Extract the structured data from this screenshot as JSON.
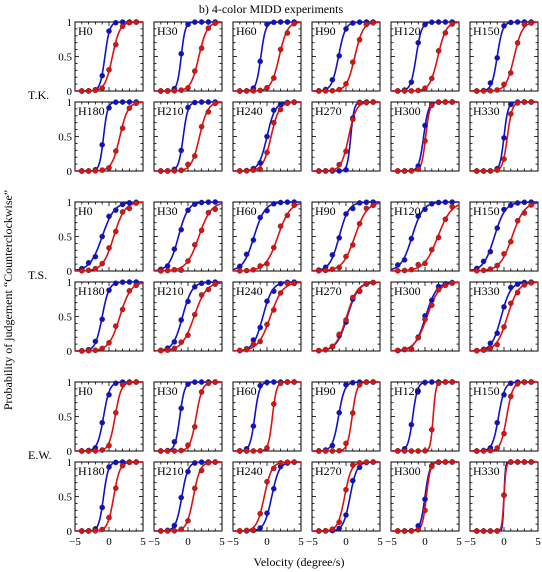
{
  "chart_data": {
    "type": "scatter",
    "title": "b) 4-color MIDD experiments",
    "xlabel": "Velocity (degree/s)",
    "ylabel": "Probability of judgement “Counterclockwise”",
    "xlim": [
      -5,
      5
    ],
    "ylim": [
      0,
      1
    ],
    "xticks": [
      "−5",
      "0",
      "5"
    ],
    "yticks": [
      "0",
      "0.5",
      "1"
    ],
    "colors": {
      "blue": "#1010cc",
      "red": "#dd1111"
    },
    "subjects": [
      {
        "label": "T.K.",
        "panels": [
          {
            "label": "H0",
            "blue_mu": -0.6,
            "blue_s": 0.35,
            "red_mu": 0.5,
            "red_s": 0.55
          },
          {
            "label": "H30",
            "blue_mu": -1.0,
            "blue_s": 0.3,
            "red_mu": 1.6,
            "red_s": 0.6
          },
          {
            "label": "H60",
            "blue_mu": -0.9,
            "blue_s": 0.35,
            "red_mu": 1.8,
            "red_s": 0.6
          },
          {
            "label": "H90",
            "blue_mu": -1.1,
            "blue_s": 0.5,
            "red_mu": 1.3,
            "red_s": 0.6
          },
          {
            "label": "H120",
            "blue_mu": -1.3,
            "blue_s": 0.4,
            "red_mu": 1.9,
            "red_s": 0.6
          },
          {
            "label": "H150",
            "blue_mu": -1.0,
            "blue_s": 0.4,
            "red_mu": 1.5,
            "red_s": 0.6
          },
          {
            "label": "H180",
            "blue_mu": -0.8,
            "blue_s": 0.3,
            "red_mu": 1.6,
            "red_s": 0.6
          },
          {
            "label": "H210",
            "blue_mu": -0.7,
            "blue_s": 0.35,
            "red_mu": 1.7,
            "red_s": 0.6
          },
          {
            "label": "H240",
            "blue_mu": 0.0,
            "blue_s": 0.6,
            "red_mu": 0.6,
            "red_s": 0.6
          },
          {
            "label": "H270",
            "blue_mu": 0.7,
            "blue_s": 0.25,
            "red_mu": 0.4,
            "red_s": 0.55
          },
          {
            "label": "H300",
            "blue_mu": -0.2,
            "blue_s": 0.35,
            "red_mu": 0.1,
            "red_s": 0.3
          },
          {
            "label": "H330",
            "blue_mu": 0.0,
            "blue_s": 0.3,
            "red_mu": 0.5,
            "red_s": 0.35
          }
        ]
      },
      {
        "label": "T.S.",
        "panels": [
          {
            "label": "H0",
            "blue_mu": -1.0,
            "blue_s": 0.9,
            "red_mu": 0.7,
            "red_s": 0.8
          },
          {
            "label": "H30",
            "blue_mu": -1.4,
            "blue_s": 0.7,
            "red_mu": 1.6,
            "red_s": 0.9
          },
          {
            "label": "H60",
            "blue_mu": -1.9,
            "blue_s": 0.8,
            "red_mu": 1.6,
            "red_s": 0.9
          },
          {
            "label": "H90",
            "blue_mu": -1.0,
            "blue_s": 0.7,
            "red_mu": 1.3,
            "red_s": 0.9
          },
          {
            "label": "H120",
            "blue_mu": -1.9,
            "blue_s": 0.8,
            "red_mu": 1.9,
            "red_s": 1.0
          },
          {
            "label": "H150",
            "blue_mu": -1.4,
            "blue_s": 0.8,
            "red_mu": 1.2,
            "red_s": 0.9
          },
          {
            "label": "H180",
            "blue_mu": -1.0,
            "blue_s": 0.5,
            "red_mu": 1.6,
            "red_s": 0.8
          },
          {
            "label": "H210",
            "blue_mu": -0.8,
            "blue_s": 0.7,
            "red_mu": 0.9,
            "red_s": 0.9
          },
          {
            "label": "H240",
            "blue_mu": -0.6,
            "blue_s": 0.7,
            "red_mu": 0.5,
            "red_s": 0.9
          },
          {
            "label": "H270",
            "blue_mu": 0.2,
            "blue_s": 0.8,
            "red_mu": 0.1,
            "red_s": 0.8
          },
          {
            "label": "H300",
            "blue_mu": 0.1,
            "blue_s": 0.8,
            "red_mu": 0.3,
            "red_s": 0.9
          },
          {
            "label": "H330",
            "blue_mu": -0.4,
            "blue_s": 0.7,
            "red_mu": 0.5,
            "red_s": 0.8
          }
        ]
      },
      {
        "label": "E.W.",
        "panels": [
          {
            "label": "H0",
            "blue_mu": -0.8,
            "blue_s": 0.45,
            "red_mu": 0.9,
            "red_s": 0.45
          },
          {
            "label": "H30",
            "blue_mu": -1.2,
            "blue_s": 0.35,
            "red_mu": 1.2,
            "red_s": 0.45
          },
          {
            "label": "H60",
            "blue_mu": -1.8,
            "blue_s": 0.35,
            "red_mu": 0.8,
            "red_s": 0.3
          },
          {
            "label": "H90",
            "blue_mu": -1.1,
            "blue_s": 0.45,
            "red_mu": 0.9,
            "red_s": 0.35
          },
          {
            "label": "H120",
            "blue_mu": -1.8,
            "blue_s": 0.35,
            "red_mu": 1.2,
            "red_s": 0.2
          },
          {
            "label": "H150",
            "blue_mu": -0.8,
            "blue_s": 0.45,
            "red_mu": 0.4,
            "red_s": 0.45
          },
          {
            "label": "H180",
            "blue_mu": -0.8,
            "blue_s": 0.35,
            "red_mu": 0.7,
            "red_s": 0.45
          },
          {
            "label": "H210",
            "blue_mu": -0.9,
            "blue_s": 0.45,
            "red_mu": 0.8,
            "red_s": 0.5
          },
          {
            "label": "H240",
            "blue_mu": 0.7,
            "blue_s": 0.55,
            "red_mu": -0.4,
            "red_s": 0.55
          },
          {
            "label": "H270",
            "blue_mu": 0.6,
            "blue_s": 0.5,
            "red_mu": -0.2,
            "red_s": 0.5
          },
          {
            "label": "H300",
            "blue_mu": 0.0,
            "blue_s": 0.35,
            "red_mu": 0.2,
            "red_s": 0.3
          },
          {
            "label": "H330",
            "blue_mu": 0.0,
            "blue_s": 0.1,
            "red_mu": 0.0,
            "red_s": 0.15
          }
        ]
      }
    ]
  }
}
